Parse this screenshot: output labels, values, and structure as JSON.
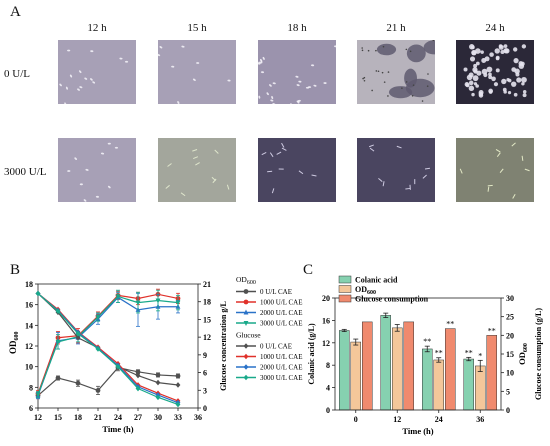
{
  "panel_a": {
    "letter": "A",
    "times": [
      "12 h",
      "15 h",
      "18 h",
      "21 h",
      "24 h"
    ],
    "rows": [
      {
        "label": "0 U/L",
        "tiles": [
          "clusters-light",
          "clusters-light",
          "clusters-dense",
          "film-gray",
          "film-dark"
        ]
      },
      {
        "label": "3000 U/L",
        "tiles": [
          "clusters-light",
          "dispersed-green",
          "dispersed-dark",
          "dispersed-dark",
          "dispersed-olive"
        ]
      }
    ]
  },
  "panel_b": {
    "letter": "B"
  },
  "panel_c": {
    "letter": "C"
  },
  "chart_data": [
    {
      "type": "line",
      "panel": "B",
      "x": [
        12,
        15,
        18,
        21,
        24,
        27,
        30,
        33
      ],
      "xlabel": "Time (h)",
      "ylabel": "OD600",
      "ylabel_main": "OD",
      "ylabel_sub": "600",
      "y2label": "Glucose concentration g/L",
      "ylim": [
        6,
        18
      ],
      "y2lim": [
        0,
        21
      ],
      "xlim": [
        12,
        36
      ],
      "xticks": [
        12,
        15,
        18,
        21,
        24,
        27,
        30,
        33,
        36
      ],
      "yticks": [
        6,
        8,
        10,
        12,
        14,
        16,
        18
      ],
      "y2ticks": [
        0,
        3,
        6,
        9,
        12,
        15,
        18,
        21
      ],
      "legend_od_title_main": "OD",
      "legend_od_title_sub": "600",
      "legend_glucose_title": "Glucose",
      "series": [
        {
          "name": "0 U/L CAE",
          "group": "OD600",
          "axis": "left",
          "color": "#505050",
          "marker": "circle",
          "values": [
            7.2,
            8.9,
            8.4,
            7.7,
            9.9,
            9.5,
            9.2,
            9.1
          ],
          "err": [
            0.3,
            0.2,
            0.3,
            0.4,
            0.3,
            0.2,
            0.2,
            0.2
          ]
        },
        {
          "name": "1000 U/L CAE",
          "group": "OD600",
          "axis": "left",
          "color": "#e0312a",
          "marker": "circle",
          "values": [
            7.4,
            12.8,
            13.0,
            14.9,
            16.9,
            16.6,
            17.0,
            16.6
          ],
          "err": [
            0.3,
            0.6,
            0.7,
            0.4,
            0.4,
            0.6,
            0.5,
            0.5
          ]
        },
        {
          "name": "2000 U/L CAE",
          "group": "OD600",
          "axis": "left",
          "color": "#2a72c8",
          "marker": "triangle",
          "values": [
            7.2,
            12.5,
            12.8,
            14.6,
            16.7,
            15.5,
            15.8,
            15.8
          ],
          "err": [
            0.3,
            0.8,
            0.6,
            0.5,
            0.5,
            1.6,
            1.2,
            0.6
          ]
        },
        {
          "name": "3000 U/L CAE",
          "group": "OD600",
          "axis": "left",
          "color": "#19a98a",
          "marker": "triangle-down",
          "values": [
            7.3,
            12.4,
            12.9,
            14.8,
            16.8,
            16.2,
            16.4,
            16.2
          ],
          "err": [
            0.3,
            0.7,
            0.5,
            0.4,
            0.6,
            1.0,
            1.0,
            0.7
          ]
        },
        {
          "name": "0 U/L CAE",
          "group": "Glucose",
          "axis": "right",
          "color": "#505050",
          "marker": "diamond",
          "values": [
            19.4,
            16.2,
            11.9,
            10.2,
            7.0,
            5.5,
            4.3,
            3.9
          ]
        },
        {
          "name": "1000 U/L CAE",
          "group": "Glucose",
          "axis": "right",
          "color": "#e0312a",
          "marker": "diamond",
          "values": [
            19.4,
            16.7,
            12.9,
            10.3,
            7.5,
            3.9,
            2.5,
            1.2
          ]
        },
        {
          "name": "2000 U/L CAE",
          "group": "Glucose",
          "axis": "right",
          "color": "#2a72c8",
          "marker": "diamond",
          "values": [
            19.4,
            16.5,
            12.8,
            10.1,
            7.2,
            3.6,
            2.2,
            0.9
          ]
        },
        {
          "name": "3000 U/L CAE",
          "group": "Glucose",
          "axis": "right",
          "color": "#19a98a",
          "marker": "diamond",
          "values": [
            19.4,
            16.4,
            12.6,
            10.0,
            7.0,
            3.3,
            1.8,
            0.6
          ]
        }
      ]
    },
    {
      "type": "bar",
      "panel": "C",
      "categories": [
        "0",
        "12",
        "24",
        "36"
      ],
      "xlabel": "Time (h)",
      "ylabel": "Colanic acid (g/L)",
      "y2label_main": "OD",
      "y2label_sub": "600",
      "y3label": "Glucose consumption (g/L)",
      "ylim": [
        0,
        20
      ],
      "y2lim": [
        0,
        30
      ],
      "yticks": [
        0,
        4,
        8,
        12,
        16,
        20
      ],
      "y2ticks": [
        0,
        5,
        10,
        15,
        20,
        25,
        30
      ],
      "legend": "top-left",
      "series": [
        {
          "name": "Colanic acid",
          "color": "#86d1b0",
          "axis": "left",
          "values": [
            14.2,
            16.9,
            10.9,
            9.1
          ],
          "err": [
            0.2,
            0.4,
            0.5,
            0.3
          ],
          "sig": [
            "",
            "",
            "**",
            "**"
          ]
        },
        {
          "name_main": "OD",
          "name_sub": "600",
          "color": "#f4c79a",
          "axis": "right",
          "values": [
            18.2,
            22.0,
            13.4,
            11.8
          ],
          "err": [
            0.8,
            0.9,
            0.6,
            1.5
          ],
          "sig": [
            "",
            "",
            "**",
            "*"
          ]
        },
        {
          "name": "Glucose consumption",
          "color": "#f08a6e",
          "axis": "right",
          "values": [
            23.6,
            23.6,
            21.8,
            20.0
          ],
          "err": [
            0,
            0,
            0,
            0
          ],
          "sig": [
            "",
            "",
            "**",
            "**"
          ]
        }
      ]
    }
  ]
}
